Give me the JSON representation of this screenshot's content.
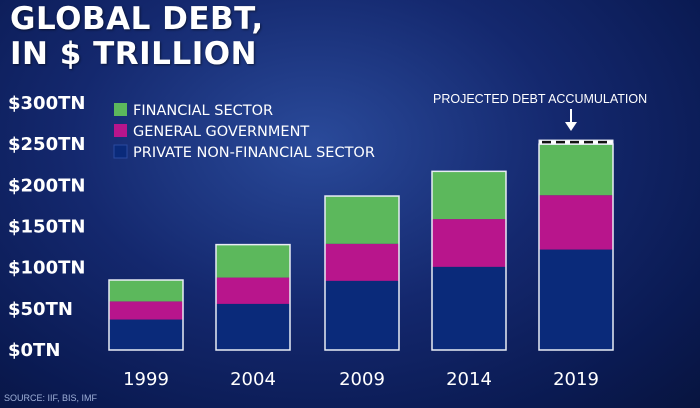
{
  "title": {
    "line1": "GLOBAL DEBT,",
    "line2": "IN $ TRILLION"
  },
  "source": "SOURCE: IIF, BIS, IMF",
  "colors": {
    "financial": "#5cb85c",
    "government": "#b8158c",
    "private": "#0a2a7a",
    "background": "#14286e"
  },
  "chart_data": {
    "type": "bar",
    "stacked": true,
    "categories": [
      "1999",
      "2004",
      "2009",
      "2014",
      "2019"
    ],
    "series": [
      {
        "name": "PRIVATE NON-FINANCIAL SECTOR",
        "values": [
          37,
          56,
          84,
          101,
          122
        ]
      },
      {
        "name": "GENERAL GOVERNMENT",
        "values": [
          22,
          32,
          45,
          58,
          66
        ]
      },
      {
        "name": "FINANCIAL SECTOR",
        "values": [
          26,
          40,
          58,
          58,
          62
        ]
      }
    ],
    "projected_extra": [
      0,
      0,
      0,
      0,
      5
    ],
    "ylim": [
      0,
      300
    ],
    "yticks": [
      "$0TN",
      "$50TN",
      "$100TN",
      "$150TN",
      "$200TN",
      "$250TN",
      "$300TN"
    ],
    "legend": [
      {
        "label": "FINANCIAL SECTOR",
        "color": "#5cb85c"
      },
      {
        "label": "GENERAL GOVERNMENT",
        "color": "#b8158c"
      },
      {
        "label": "PRIVATE NON-FINANCIAL SECTOR",
        "color": "#0a2a7a"
      }
    ],
    "legend_position": "top-left",
    "annotation": "PROJECTED DEBT ACCUMULATION",
    "grid": false
  }
}
